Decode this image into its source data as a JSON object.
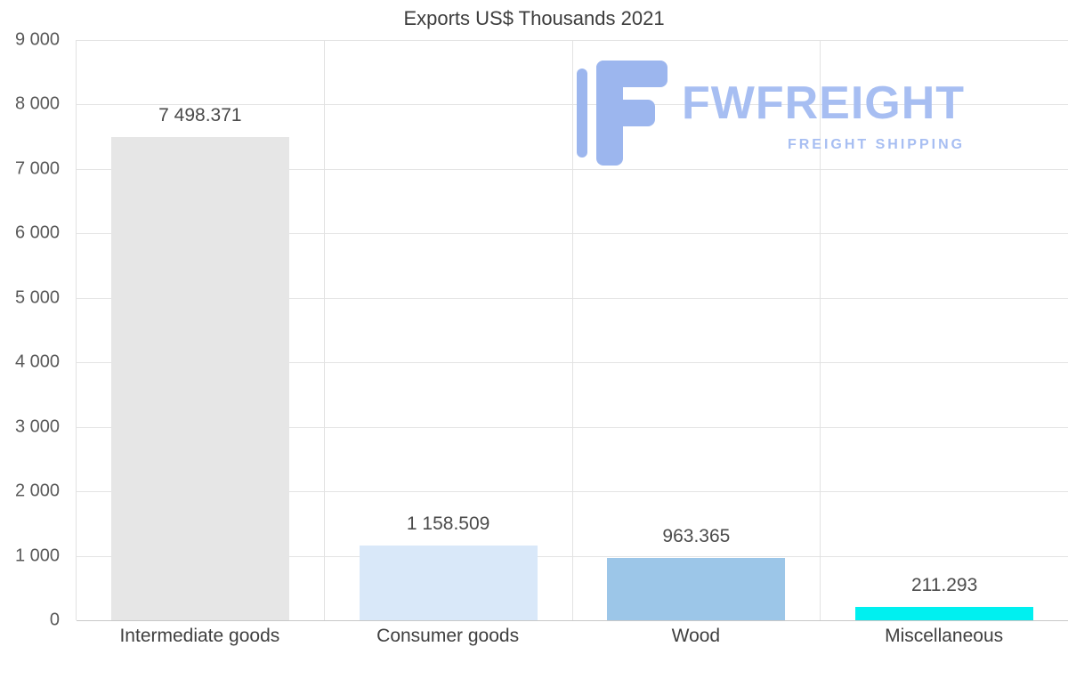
{
  "logo": {
    "name": "FWFREIGHT",
    "tagline": "FREIGHT SHIPPING",
    "color": "#a7bef2",
    "icon_color": "#9cb6ee"
  },
  "chart_data": {
    "type": "bar",
    "title": "Exports US$ Thousands 2021",
    "categories": [
      "Intermediate goods",
      "Consumer goods",
      "Wood",
      "Miscellaneous"
    ],
    "values": [
      7498.371,
      1158.509,
      963.365,
      211.293
    ],
    "value_labels": [
      "7 498.371",
      "1 158.509",
      "963.365",
      "211.293"
    ],
    "bar_colors": [
      "#e6e6e6",
      "#d9e8f9",
      "#9cc6e8",
      "#00f0f0"
    ],
    "xlabel": "",
    "ylabel": "",
    "ylim": [
      0,
      9000
    ],
    "ytick_step": 1000,
    "ytick_labels": [
      "0",
      "1 000",
      "2 000",
      "3 000",
      "4 000",
      "5 000",
      "6 000",
      "7 000",
      "8 000",
      "9 000"
    ],
    "grid": true,
    "legend": false
  }
}
